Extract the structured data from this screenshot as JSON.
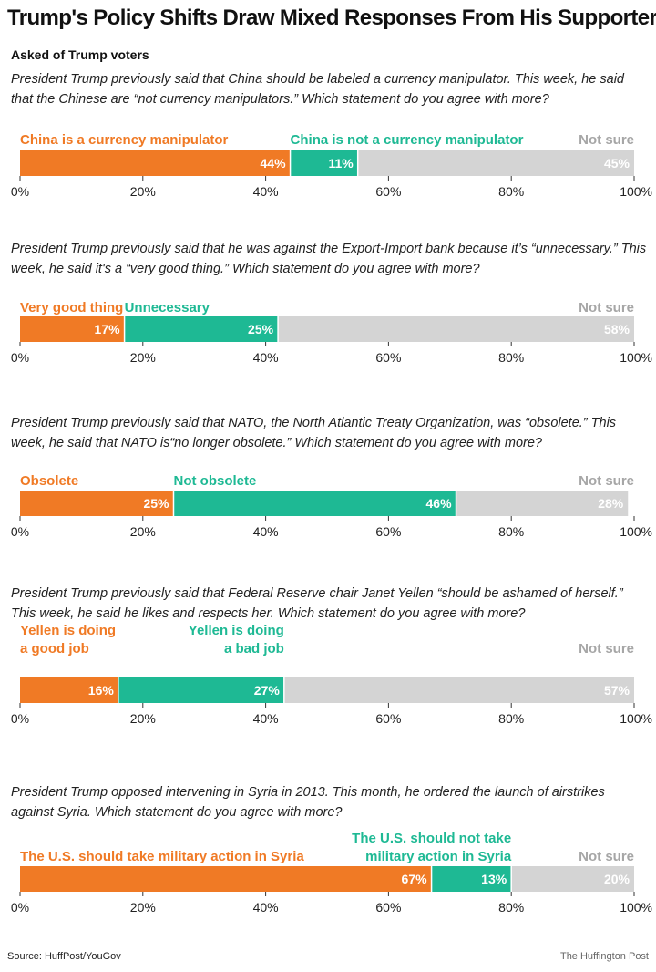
{
  "title": "Trump's Policy Shifts Draw Mixed Responses From His Supporters",
  "subtitle": "Asked of Trump voters",
  "colors": {
    "orange": "#F07A25",
    "green": "#1EB994",
    "gray": "#D4D4D4",
    "not_sure_text": "#A6A6A6"
  },
  "axis_ticks": [
    "0%",
    "20%",
    "40%",
    "60%",
    "80%",
    "100%"
  ],
  "footer": {
    "source": "Source: HuffPost/YouGov",
    "credit": "The Huffington Post"
  },
  "chart_data": [
    {
      "type": "bar",
      "stacked": true,
      "orientation": "horizontal",
      "question": "President Trump previously said that China should be labeled a currency manipulator. This week, he said that the Chinese are “not currency manipulators.” Which statement do you agree with more?",
      "categories": [
        "China is a currency manipulator",
        "China is not a currency manipulator",
        "Not sure"
      ],
      "values": [
        44,
        11,
        45
      ],
      "value_labels": [
        "44%",
        "11%",
        "45%"
      ],
      "xlim": [
        0,
        100
      ]
    },
    {
      "type": "bar",
      "stacked": true,
      "orientation": "horizontal",
      "question": "President Trump previously said that he was against the Export-Import bank because it’s “unnecessary.” This week, he said it's a “very good thing.” Which statement do you agree with more?",
      "categories": [
        "Very good thing",
        "Unnecessary",
        "Not sure"
      ],
      "values": [
        17,
        25,
        58
      ],
      "value_labels": [
        "17%",
        "25%",
        "58%"
      ],
      "xlim": [
        0,
        100
      ]
    },
    {
      "type": "bar",
      "stacked": true,
      "orientation": "horizontal",
      "question": "President Trump previously said that NATO, the North Atlantic Treaty Organization, was “obsolete.” This week, he said that NATO is“no longer obsolete.” Which statement do you agree with more?",
      "categories": [
        "Obsolete",
        "Not obsolete",
        "Not sure"
      ],
      "values": [
        25,
        46,
        28
      ],
      "value_labels": [
        "25%",
        "46%",
        "28%"
      ],
      "xlim": [
        0,
        100
      ]
    },
    {
      "type": "bar",
      "stacked": true,
      "orientation": "horizontal",
      "question": "President Trump previously said that Federal Reserve chair Janet Yellen “should be ashamed of herself.” This week, he said he likes and respects her. Which statement do you agree with more?",
      "categories": [
        "Yellen is doing a good job",
        "Yellen is doing a bad job",
        "Not sure"
      ],
      "category_lines": [
        [
          "Yellen is doing",
          "a good job"
        ],
        [
          "Yellen is doing",
          "a bad job"
        ],
        [
          "Not sure"
        ]
      ],
      "values": [
        16,
        27,
        57
      ],
      "value_labels": [
        "16%",
        "27%",
        "57%"
      ],
      "xlim": [
        0,
        100
      ]
    },
    {
      "type": "bar",
      "stacked": true,
      "orientation": "horizontal",
      "question": "President Trump opposed intervening in Syria in 2013. This month, he ordered the launch of airstrikes against Syria. Which statement do you agree with more?",
      "categories": [
        "The U.S. should take military action in Syria",
        "The U.S. should not take military action in Syria",
        "Not sure"
      ],
      "category_lines": [
        [
          "The U.S. should take military action in Syria"
        ],
        [
          "The U.S. should not take",
          "military action in Syria"
        ],
        [
          "Not sure"
        ]
      ],
      "values": [
        67,
        13,
        20
      ],
      "value_labels": [
        "67%",
        "13%",
        "20%"
      ],
      "xlim": [
        0,
        100
      ]
    }
  ]
}
